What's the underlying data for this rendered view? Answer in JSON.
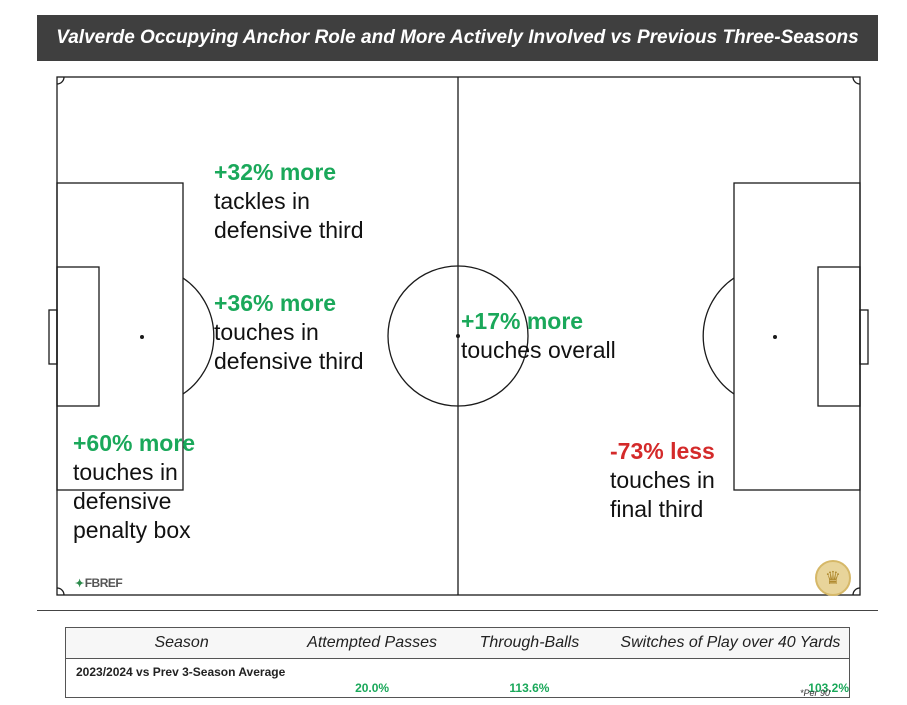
{
  "title": "Valverde Occupying Anchor Role and More Actively Involved vs Previous Three-Seasons",
  "stats": [
    {
      "id": "tackles-def-third",
      "head": "+32% more",
      "desc": "tackles in\ndefensive third",
      "sign": "positive"
    },
    {
      "id": "touches-def-third",
      "head": "+36% more",
      "desc": "touches in\ndefensive third",
      "sign": "positive"
    },
    {
      "id": "touches-overall",
      "head": "+17% more",
      "desc": "touches overall",
      "sign": "positive"
    },
    {
      "id": "touches-def-box",
      "head": "+60% more",
      "desc": "touches in\ndefensive\npenalty box",
      "sign": "positive"
    },
    {
      "id": "touches-final-third",
      "head": "-73% less",
      "desc": "touches in\nfinal third",
      "sign": "negative"
    }
  ],
  "source_logo": "FBREF",
  "colors": {
    "positive": "#1aa85a",
    "negative": "#d42a2a",
    "title_bg": "#3f3f3f"
  },
  "table": {
    "headers": [
      "Season",
      "Attempted Passes",
      "Through-Balls",
      "Switches of Play over 40 Yards"
    ],
    "rows": [
      {
        "season": "2023/2024 vs Prev 3-Season Average",
        "attempted_passes": "20.0%",
        "through_balls": "113.6%",
        "switches": "103.2%"
      }
    ]
  },
  "footnote": "*Per 90"
}
